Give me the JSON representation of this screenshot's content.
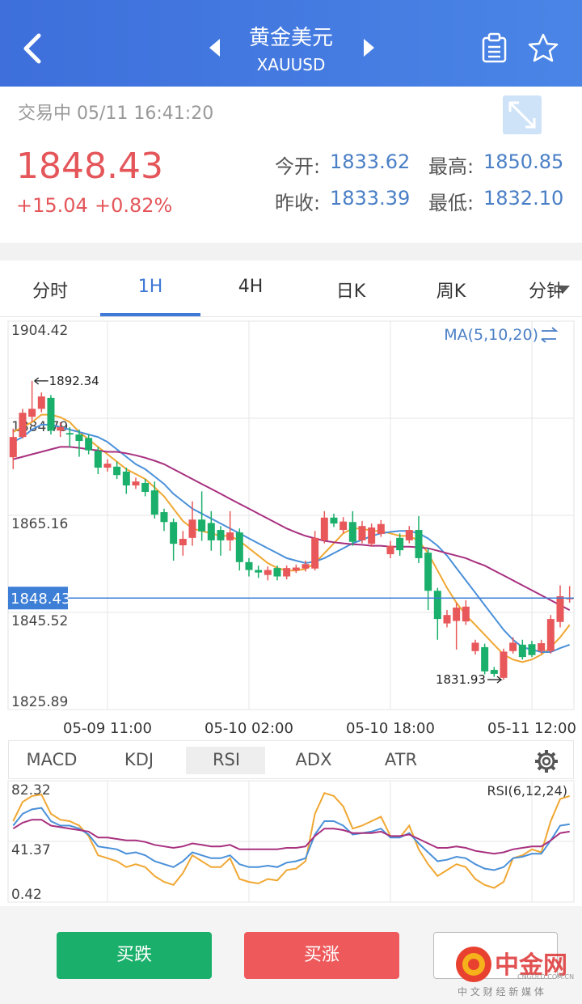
{
  "header": {
    "title": "黄金美元",
    "symbol": "XAUUSD"
  },
  "quote": {
    "status_time": "交易中 05/11 16:41:20",
    "price": "1848.43",
    "change": "+15.04",
    "change_pct": "+0.82%",
    "stats": [
      {
        "label": "今开:",
        "value": "1833.62"
      },
      {
        "label": "最高:",
        "value": "1850.85"
      },
      {
        "label": "昨收:",
        "value": "1833.39"
      },
      {
        "label": "最低:",
        "value": "1832.10"
      }
    ]
  },
  "period_tabs": {
    "items": [
      "分时",
      "1H",
      "4H",
      "日K",
      "周K",
      "分钟"
    ],
    "selected": 1
  },
  "chart_data": [
    {
      "type": "candlestick",
      "legend": "MA(5,10,20)",
      "up_color": "#e8585a",
      "down_color": "#1aaf6a",
      "last_price_color": "#3d7fd6",
      "grid": true,
      "categories": [
        null,
        null,
        null,
        null,
        null,
        null,
        null,
        null,
        null,
        null,
        "05-09 11:00",
        null,
        null,
        null,
        null,
        null,
        null,
        null,
        null,
        null,
        null,
        null,
        null,
        null,
        null,
        "05-10 02:00",
        null,
        null,
        null,
        null,
        null,
        null,
        null,
        null,
        null,
        null,
        null,
        null,
        null,
        null,
        "05-10 18:00",
        null,
        null,
        null,
        null,
        null,
        null,
        null,
        null,
        null,
        null,
        null,
        null,
        null,
        null,
        "05-11 12:00",
        null,
        null,
        null,
        null
      ],
      "open": [
        1876.9,
        1881.0,
        1885.1,
        1886.7,
        1888.9,
        1882.3,
        1881.8,
        1881.5,
        1880.8,
        1878.2,
        1874.8,
        1875.0,
        1874.0,
        1871.2,
        1871.7,
        1870.2,
        1865.8,
        1863.8,
        1859.1,
        1860.6,
        1864.3,
        1863.6,
        1862.2,
        1860.1,
        1861.7,
        1855.7,
        1854.1,
        1853.1,
        1854.5,
        1852.8,
        1854.0,
        1854.4,
        1854.4,
        1860.1,
        1864.7,
        1862.2,
        1863.8,
        1860.1,
        1859.4,
        1861.4,
        1857.3,
        1860.6,
        1860.1,
        1862.2,
        1857.6,
        1849.9,
        1843.3,
        1843.8,
        1843.7,
        1837.7,
        1838.5,
        1833.9,
        1832.3,
        1837.7,
        1839.0,
        1839.1,
        1837.7,
        1837.7,
        1843.6,
        1848.2
      ],
      "high": [
        1882.7,
        1886.7,
        1892.34,
        1890.0,
        1889.5,
        1884.0,
        1883.0,
        1882.5,
        1881.5,
        1879.0,
        1876.5,
        1876.0,
        1874.8,
        1872.8,
        1872.5,
        1872.0,
        1866.5,
        1864.5,
        1862.0,
        1868.0,
        1870.0,
        1866.0,
        1863.0,
        1866.0,
        1862.5,
        1856.5,
        1855.0,
        1854.8,
        1855.0,
        1855.0,
        1855.2,
        1856.0,
        1862.0,
        1866.0,
        1865.5,
        1864.8,
        1866.0,
        1864.0,
        1863.5,
        1864.2,
        1860.0,
        1861.5,
        1863.0,
        1865.0,
        1858.5,
        1850.5,
        1846.0,
        1847.5,
        1848.0,
        1840.0,
        1839.2,
        1834.5,
        1838.2,
        1840.5,
        1840.0,
        1839.8,
        1840.0,
        1845.0,
        1851.0,
        1850.85
      ],
      "low": [
        1874.5,
        1880.7,
        1884.0,
        1886.0,
        1881.5,
        1881.0,
        1879.0,
        1877.0,
        1877.5,
        1873.5,
        1874.0,
        1872.5,
        1869.5,
        1870.5,
        1869.0,
        1864.5,
        1862.0,
        1856.0,
        1857.0,
        1859.0,
        1860.0,
        1858.0,
        1857.0,
        1858.0,
        1854.0,
        1852.8,
        1852.5,
        1852.0,
        1852.0,
        1852.2,
        1853.5,
        1853.8,
        1854.0,
        1859.5,
        1862.8,
        1861.5,
        1859.0,
        1859.5,
        1858.8,
        1860.8,
        1856.5,
        1857.0,
        1859.5,
        1855.5,
        1846.0,
        1840.0,
        1842.5,
        1838.0,
        1843.0,
        1837.0,
        1833.0,
        1832.5,
        1831.93,
        1837.2,
        1836.0,
        1836.5,
        1837.2,
        1837.2,
        1842.5,
        1847.5
      ],
      "close": [
        1881.0,
        1885.9,
        1886.7,
        1889.2,
        1882.3,
        1883.0,
        1881.5,
        1880.2,
        1878.3,
        1874.8,
        1875.6,
        1873.3,
        1871.2,
        1872.0,
        1869.9,
        1865.3,
        1863.8,
        1859.4,
        1860.4,
        1864.3,
        1861.9,
        1860.1,
        1860.1,
        1861.7,
        1855.7,
        1854.1,
        1853.6,
        1854.1,
        1852.8,
        1854.5,
        1854.6,
        1855.3,
        1860.6,
        1864.7,
        1863.5,
        1863.9,
        1859.8,
        1863.0,
        1862.7,
        1863.4,
        1859.0,
        1858.1,
        1862.2,
        1856.5,
        1849.9,
        1844.2,
        1845.0,
        1846.5,
        1846.7,
        1839.4,
        1833.6,
        1833.1,
        1837.6,
        1839.4,
        1836.5,
        1836.9,
        1839.3,
        1844.2,
        1848.8,
        1848.43
      ],
      "series": [
        {
          "color": "#f0a732",
          "values": [
            1882,
            1883,
            1884,
            1885.5,
            1885.5,
            1885,
            1884,
            1882,
            1880.5,
            1879,
            1877.5,
            1876,
            1874.5,
            1873.5,
            1872.5,
            1870.8,
            1869,
            1866.5,
            1864,
            1862.5,
            1862,
            1861.5,
            1861,
            1861,
            1860,
            1858.5,
            1857,
            1855.5,
            1854.5,
            1854,
            1854,
            1854.3,
            1855.5,
            1857.5,
            1859.5,
            1861.5,
            1862.5,
            1862.5,
            1862,
            1862,
            1861.5,
            1861,
            1861,
            1860,
            1857.5,
            1854,
            1850.5,
            1847.5,
            1845,
            1843,
            1841,
            1839,
            1837,
            1836,
            1835.5,
            1836,
            1837,
            1838.5,
            1840.5,
            1843
          ]
        },
        {
          "color": "#4a90d9",
          "values": [
            1880,
            1881,
            1882.5,
            1883.5,
            1883.5,
            1883,
            1882.5,
            1882,
            1881.5,
            1881,
            1880,
            1878.5,
            1877,
            1875.5,
            1874.5,
            1873,
            1871.5,
            1869.5,
            1868,
            1866.5,
            1865.5,
            1864.5,
            1863.5,
            1862.5,
            1861.5,
            1860.5,
            1859.5,
            1858.5,
            1857.5,
            1856.5,
            1856,
            1855.5,
            1855.8,
            1856.5,
            1857.5,
            1858.5,
            1859.5,
            1860.2,
            1861,
            1861.5,
            1861.8,
            1862,
            1862,
            1861.5,
            1860.5,
            1859,
            1857,
            1854.5,
            1852,
            1849.5,
            1847,
            1844.5,
            1842,
            1840,
            1838.5,
            1838,
            1837.5,
            1837.5,
            1838.3,
            1839
          ]
        },
        {
          "color": "#a8307f",
          "values": [
            1876.5,
            1877,
            1877.5,
            1878,
            1878.5,
            1879,
            1879,
            1878.8,
            1878.5,
            1878.3,
            1878,
            1878,
            1877.7,
            1877.3,
            1876.8,
            1876.2,
            1875.5,
            1874.5,
            1873.5,
            1872.5,
            1871.5,
            1870.5,
            1869.5,
            1868.5,
            1867.5,
            1866.5,
            1865.5,
            1864.5,
            1863.5,
            1862.5,
            1861.7,
            1861,
            1860.5,
            1860,
            1859.7,
            1859.5,
            1859.3,
            1859.2,
            1859,
            1859,
            1858.8,
            1858.8,
            1858.8,
            1858.7,
            1858.5,
            1858,
            1857.5,
            1857,
            1856.5,
            1855.7,
            1855,
            1854,
            1853,
            1852,
            1851,
            1850,
            1849,
            1848,
            1847,
            1846
          ]
        }
      ],
      "ylim": [
        1825.89,
        1904.42
      ],
      "yticks": [
        1904.42,
        1884.79,
        1865.16,
        1845.52,
        1825.89
      ]
    },
    {
      "type": "line",
      "legend": "RSI(6,12,24)",
      "grid": true,
      "series": [
        {
          "color": "#f0a732",
          "values": [
            55,
            68,
            72,
            73,
            60,
            56,
            55,
            52,
            45,
            32,
            30,
            28,
            24,
            26,
            24,
            18,
            14,
            12,
            20,
            32,
            28,
            24,
            24,
            30,
            16,
            14,
            13,
            16,
            15,
            22,
            23,
            28,
            60,
            74,
            72,
            65,
            50,
            52,
            55,
            58,
            45,
            44,
            52,
            36,
            26,
            18,
            22,
            26,
            24,
            16,
            12,
            10,
            14,
            30,
            32,
            36,
            34,
            55,
            70,
            72
          ]
        },
        {
          "color": "#4a90d9",
          "values": [
            52,
            60,
            63,
            64,
            55,
            52,
            52,
            50,
            46,
            38,
            37,
            36,
            33,
            34,
            32,
            28,
            26,
            24,
            28,
            34,
            32,
            30,
            30,
            32,
            26,
            24,
            24,
            25,
            24,
            27,
            28,
            30,
            46,
            55,
            55,
            52,
            46,
            47,
            48,
            50,
            44,
            44,
            47,
            40,
            34,
            28,
            29,
            31,
            30,
            26,
            23,
            22,
            24,
            30,
            31,
            33,
            33,
            42,
            52,
            53
          ]
        },
        {
          "color": "#a8307f",
          "values": [
            50,
            54,
            56,
            56,
            52,
            51,
            50,
            49,
            48,
            44,
            44,
            43,
            42,
            42,
            41,
            39,
            38,
            37,
            38,
            40,
            39,
            38,
            38,
            39,
            36,
            36,
            36,
            36,
            36,
            37,
            37,
            38,
            45,
            50,
            50,
            49,
            47,
            47,
            47,
            48,
            45,
            45,
            46,
            43,
            40,
            37,
            37,
            38,
            37,
            35,
            34,
            33,
            34,
            36,
            37,
            38,
            38,
            42,
            47,
            48
          ]
        }
      ],
      "ylim": [
        0.42,
        82.32
      ],
      "yticks": [
        82.32,
        41.37,
        0.42
      ]
    }
  ],
  "indicator_tabs": {
    "items": [
      "MACD",
      "KDJ",
      "RSI",
      "ADX",
      "ATR"
    ],
    "selected": 2
  },
  "buttons": {
    "sell": "买跌",
    "buy": "买涨"
  },
  "watermark": {
    "name": "中金网",
    "domain": "CNGOLD.COM.CN",
    "slogan": "中 文 财 经 新 媒 体"
  }
}
